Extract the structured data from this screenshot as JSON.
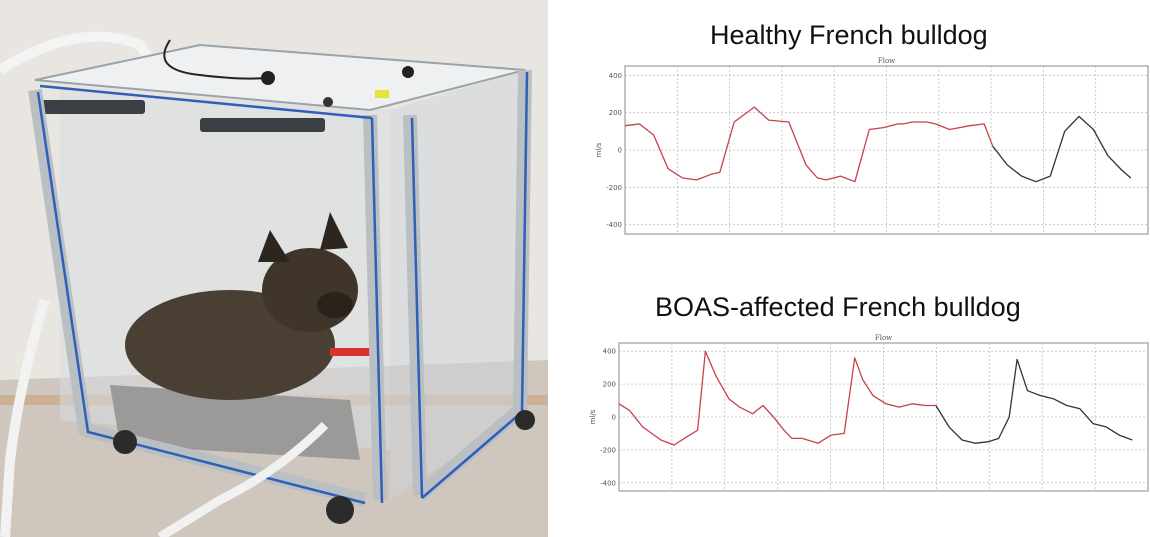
{
  "photo": {
    "subject": "French bulldog lying inside a transparent plethysmography chamber with aluminium frame and tubing"
  },
  "colors": {
    "trace_red": "#c8404a",
    "trace_black": "#333333",
    "grid": "#bfbfbf",
    "frame_blue": "#2f5fb8"
  },
  "chart_data": [
    {
      "type": "line",
      "title": "Healthy French bulldog",
      "subtitle": "Flow",
      "ylabel": "ml/s",
      "xlabel": "",
      "ylim": [
        -450,
        450
      ],
      "yticks": [
        400,
        200,
        0,
        -200,
        -400
      ],
      "grid": true,
      "series": [
        {
          "color": "red",
          "x": [
            0,
            0.5,
            1.0,
            1.5,
            2.0,
            2.5,
            3.0,
            3.3,
            3.8,
            4.5,
            5.0,
            5.7,
            6.3,
            6.7,
            7.0,
            7.5,
            8.0,
            8.5,
            9.0,
            9.5,
            9.7,
            10.0,
            10.5,
            10.8,
            11.3,
            12.0,
            12.5,
            12.8
          ],
          "y": [
            130,
            140,
            80,
            -100,
            -150,
            -160,
            -130,
            -120,
            150,
            230,
            160,
            150,
            -80,
            -150,
            -160,
            -140,
            -170,
            110,
            120,
            140,
            140,
            150,
            150,
            140,
            110,
            130,
            140,
            20
          ]
        },
        {
          "color": "black",
          "x": [
            12.8,
            13.3,
            13.8,
            14.3,
            14.8,
            15.3,
            15.8,
            16.3,
            16.8,
            17.3,
            17.6
          ],
          "y": [
            20,
            -80,
            -140,
            -170,
            -140,
            100,
            180,
            110,
            -30,
            -110,
            -150
          ]
        }
      ]
    },
    {
      "type": "line",
      "title": "BOAS-affected French bulldog",
      "subtitle": "Flow",
      "ylabel": "ml/s",
      "xlabel": "",
      "ylim": [
        -450,
        450
      ],
      "yticks": [
        400,
        200,
        0,
        -200,
        -400
      ],
      "grid": true,
      "series": [
        {
          "color": "red",
          "x": [
            0,
            0.4,
            0.9,
            1.6,
            2.1,
            2.6,
            3.0,
            3.3,
            3.7,
            4.2,
            4.6,
            5.1,
            5.5,
            5.9,
            6.3,
            6.6,
            7.0,
            7.6,
            8.1,
            8.6,
            9.0,
            9.3,
            9.7,
            10.2,
            10.7,
            11.2,
            11.7,
            12.1
          ],
          "y": [
            80,
            40,
            -60,
            -140,
            -170,
            -120,
            -80,
            400,
            250,
            110,
            60,
            20,
            70,
            0,
            -80,
            -130,
            -130,
            -160,
            -110,
            -100,
            360,
            230,
            130,
            80,
            60,
            80,
            70,
            70
          ]
        },
        {
          "color": "black",
          "x": [
            12.1,
            12.6,
            13.1,
            13.6,
            14.1,
            14.5,
            14.9,
            15.2,
            15.6,
            16.1,
            16.6,
            17.1,
            17.6,
            18.1,
            18.6,
            19.1,
            19.6
          ],
          "y": [
            70,
            -60,
            -140,
            -160,
            -150,
            -130,
            0,
            350,
            160,
            130,
            110,
            70,
            50,
            -40,
            -60,
            -110,
            -140
          ]
        }
      ]
    }
  ]
}
